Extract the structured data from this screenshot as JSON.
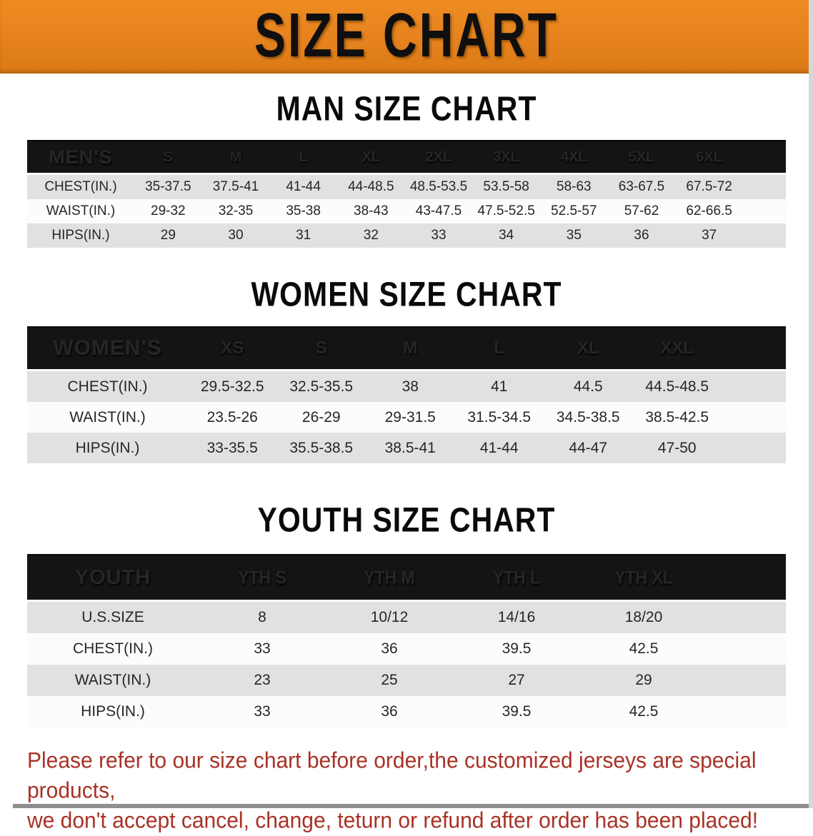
{
  "banner": {
    "title": "SIZE CHART",
    "bg_color": "#e5821e",
    "title_color": "#0f0f0f"
  },
  "colors": {
    "table_header_bar": "#141414",
    "row_shaded": "#e1e1e1",
    "row_plain": "#fcfcfc",
    "notice_text": "#a93125"
  },
  "sections": [
    {
      "id": "men",
      "heading": "MAN SIZE CHART",
      "label": "MEN'S",
      "sizes": [
        "S",
        "M",
        "L",
        "XL",
        "2XL",
        "3XL",
        "4XL",
        "5XL",
        "6XL"
      ],
      "rows": [
        {
          "label": "CHEST(IN.)",
          "values": [
            "35-37.5",
            "37.5-41",
            "41-44",
            "44-48.5",
            "48.5-53.5",
            "53.5-58",
            "58-63",
            "63-67.5",
            "67.5-72"
          ]
        },
        {
          "label": "WAIST(IN.)",
          "values": [
            "29-32",
            "32-35",
            "35-38",
            "38-43",
            "43-47.5",
            "47.5-52.5",
            "52.5-57",
            "57-62",
            "62-66.5"
          ]
        },
        {
          "label": "HIPS(IN.)",
          "values": [
            "29",
            "30",
            "31",
            "32",
            "33",
            "34",
            "35",
            "36",
            "37"
          ]
        }
      ]
    },
    {
      "id": "women",
      "heading": "WOMEN SIZE CHART",
      "label": "WOMEN'S",
      "sizes": [
        "XS",
        "S",
        "M",
        "L",
        "XL",
        "XXL"
      ],
      "rows": [
        {
          "label": "CHEST(IN.)",
          "values": [
            "29.5-32.5",
            "32.5-35.5",
            "38",
            "41",
            "44.5",
            "44.5-48.5"
          ]
        },
        {
          "label": "WAIST(IN.)",
          "values": [
            "23.5-26",
            "26-29",
            "29-31.5",
            "31.5-34.5",
            "34.5-38.5",
            "38.5-42.5"
          ]
        },
        {
          "label": "HIPS(IN.)",
          "values": [
            "33-35.5",
            "35.5-38.5",
            "38.5-41",
            "41-44",
            "44-47",
            "47-50"
          ]
        }
      ]
    },
    {
      "id": "youth",
      "heading": "YOUTH SIZE CHART",
      "label": "YOUTH",
      "sizes": [
        "YTH S",
        "YTH M",
        "YTH L",
        "YTH XL"
      ],
      "rows": [
        {
          "label": "U.S.SIZE",
          "values": [
            "8",
            "10/12",
            "14/16",
            "18/20"
          ]
        },
        {
          "label": "CHEST(IN.)",
          "values": [
            "33",
            "36",
            "39.5",
            "42.5"
          ]
        },
        {
          "label": "WAIST(IN.)",
          "values": [
            "23",
            "25",
            "27",
            "29"
          ]
        },
        {
          "label": "HIPS(IN.)",
          "values": [
            "33",
            "36",
            "39.5",
            "42.5"
          ]
        }
      ]
    }
  ],
  "footer": {
    "line1": "Please refer to our size chart before order,the customized jerseys are special products,",
    "line2": "we don't accept cancel, change, teturn or refund after order has been placed!"
  }
}
